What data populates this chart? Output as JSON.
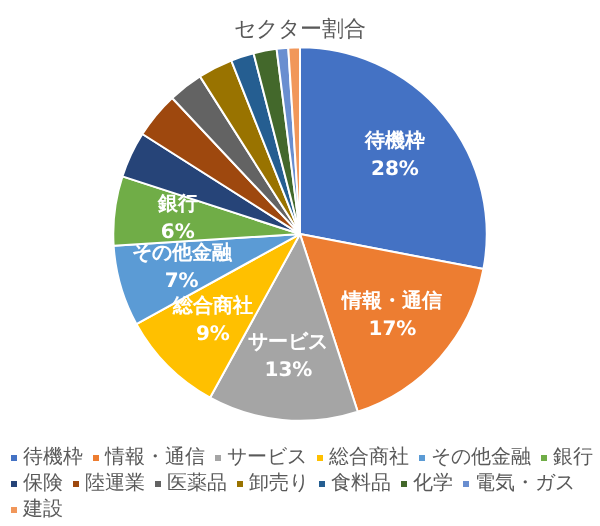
{
  "chart_data": {
    "type": "pie",
    "title": "セクター割合",
    "categories": [
      "待機枠",
      "情報・通信",
      "サービス",
      "総合商社",
      "その他金融",
      "銀行",
      "保険",
      "陸運業",
      "医薬品",
      "卸売り",
      "食料品",
      "化学",
      "電気・ガス",
      "建設"
    ],
    "values": [
      28,
      17,
      13,
      9,
      7,
      6,
      4,
      4,
      3,
      3,
      2,
      2,
      1,
      1
    ],
    "colors": [
      "#4472c4",
      "#ed7d31",
      "#a5a5a5",
      "#ffc000",
      "#5b9bd5",
      "#70ad47",
      "#264478",
      "#9e480e",
      "#636363",
      "#997300",
      "#255e91",
      "#43682b",
      "#698ed0",
      "#f1975a"
    ],
    "value_labels": [
      "28%",
      "17%",
      "13%",
      "9%",
      "7%",
      "6%",
      null,
      null,
      null,
      null,
      null,
      null,
      null,
      null
    ],
    "legend": "bottom"
  }
}
